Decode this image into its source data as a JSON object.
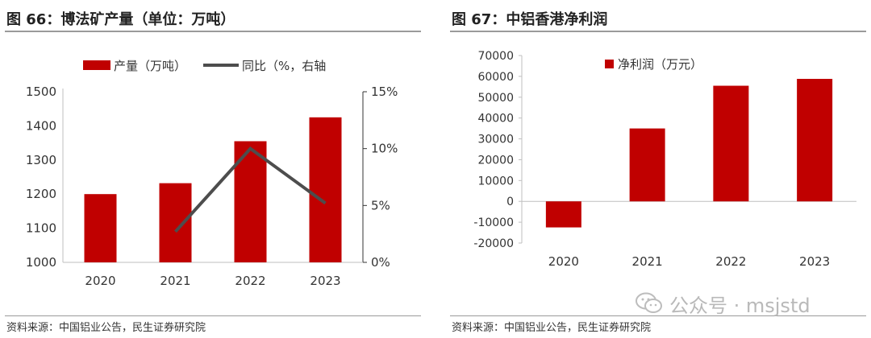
{
  "left": {
    "title": "图 66：博法矿产量（单位：万吨）",
    "source": "资料来源：中国铝业公告，民生证券研究院"
  },
  "right": {
    "title": "图 67：中铝香港净利润",
    "source": "资料来源：中国铝业公告，民生证券研究院"
  },
  "watermark": {
    "text": "公众号 · msjstd",
    "icon": "wechat-logo-icon"
  },
  "colors": {
    "bar": "#c00000",
    "line": "#4d4d4d",
    "axis": "#bfbfbf",
    "text": "#333333"
  },
  "chart_data": [
    {
      "type": "bar+line",
      "title": "图 66：博法矿产量（单位：万吨）",
      "categories": [
        "2020",
        "2021",
        "2022",
        "2023"
      ],
      "series": [
        {
          "name": "产量（万吨）",
          "type": "bar",
          "axis": "left",
          "values": [
            1200,
            1232,
            1355,
            1425
          ]
        },
        {
          "name": "同比（%，右轴",
          "type": "line",
          "axis": "right",
          "values": [
            null,
            2.7,
            10.0,
            5.2
          ]
        }
      ],
      "ylim": [
        1000,
        1500
      ],
      "yticks": [
        "1000",
        "1100",
        "1200",
        "1300",
        "1400",
        "1500"
      ],
      "y2lim": [
        0,
        15
      ],
      "y2ticks": [
        "0%",
        "5%",
        "10%",
        "15%"
      ],
      "legend_position": "top-center"
    },
    {
      "type": "bar",
      "title": "图 67：中铝香港净利润",
      "categories": [
        "2020",
        "2021",
        "2022",
        "2023"
      ],
      "series": [
        {
          "name": "净利润（万元）",
          "type": "bar",
          "values": [
            -12500,
            35000,
            55500,
            58800
          ]
        }
      ],
      "ylim": [
        -20000,
        70000
      ],
      "yticks": [
        "-20000",
        "-10000",
        "0",
        "10000",
        "20000",
        "30000",
        "40000",
        "50000",
        "60000",
        "70000"
      ],
      "legend_position": "top-left"
    }
  ]
}
